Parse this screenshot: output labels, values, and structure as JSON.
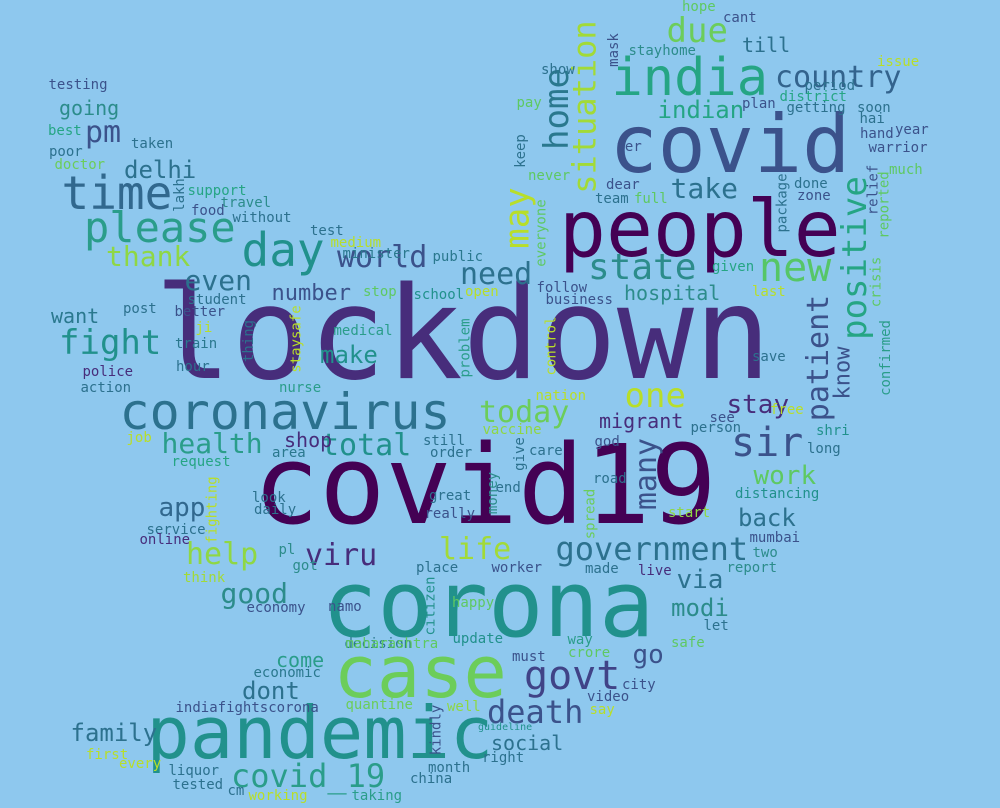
{
  "words": [
    "lockdown",
    "covid19",
    "corona",
    "people",
    "covid",
    "pandemic",
    "case",
    "india",
    "coronavirus",
    "time",
    "day",
    "please",
    "govt",
    "new",
    "sir",
    "state",
    "death",
    "positive",
    "government",
    "pm",
    "fight",
    "country",
    "may",
    "due",
    "home",
    "world",
    "need",
    "total",
    "situation",
    "today",
    "viru",
    "take",
    "help",
    "health",
    "even",
    "one",
    "stay",
    "patient",
    "life",
    "work",
    "good",
    "via",
    "many",
    "thank",
    "indian",
    "make",
    "delhi",
    "app",
    "modi",
    "go",
    "know",
    "family",
    "covid_19",
    "back",
    "dont",
    "social",
    "number",
    "hospital",
    "going",
    "shop",
    "want",
    "migrant",
    "come",
    "till",
    "indiafightscorona",
    "testing",
    "taken",
    "poor",
    "best",
    "doctor",
    "food",
    "support",
    "travel",
    "without",
    "lakh",
    "test",
    "medium",
    "minister",
    "public",
    "student",
    "post",
    "better",
    "ji",
    "train",
    "police",
    "action",
    "hour",
    "thing",
    "medical",
    "nurse",
    "stop",
    "school",
    "open",
    "staysafe",
    "problem",
    "control",
    "nation",
    "everyone",
    "keep",
    "never",
    "per",
    "dear",
    "team",
    "full",
    "package",
    "relief",
    "done",
    "zone",
    "reported",
    "much",
    "warrior",
    "year",
    "hand",
    "hai",
    "soon",
    "getting",
    "district",
    "period",
    "issue",
    "cant",
    "hope",
    "mask",
    "stayhome",
    "plan",
    "show",
    "pay",
    "given",
    "last",
    "business",
    "follow",
    "crisis",
    "confirmed",
    "free",
    "see",
    "person",
    "save",
    "shri",
    "long",
    "god",
    "care",
    "give",
    "still",
    "order",
    "vaccine",
    "request",
    "job",
    "area",
    "fighting",
    "end",
    "road",
    "distancing",
    "start",
    "great",
    "really",
    "spread",
    "money",
    "look",
    "daily",
    "service",
    "online",
    "pl",
    "got",
    "think",
    "place",
    "worker",
    "made",
    "live",
    "mumbai",
    "two",
    "report",
    "economy",
    "namo",
    "citizen",
    "happy",
    "let",
    "decision",
    "maharashtra",
    "update",
    "way",
    "safe",
    "economic",
    "must",
    "crore",
    "city",
    "quantine",
    "well",
    "kindly",
    "video",
    "say",
    "guideline",
    "right",
    "first",
    "every",
    "liquor",
    "month",
    "tested",
    "cm",
    "china",
    "working",
    "taking"
  ]
}
